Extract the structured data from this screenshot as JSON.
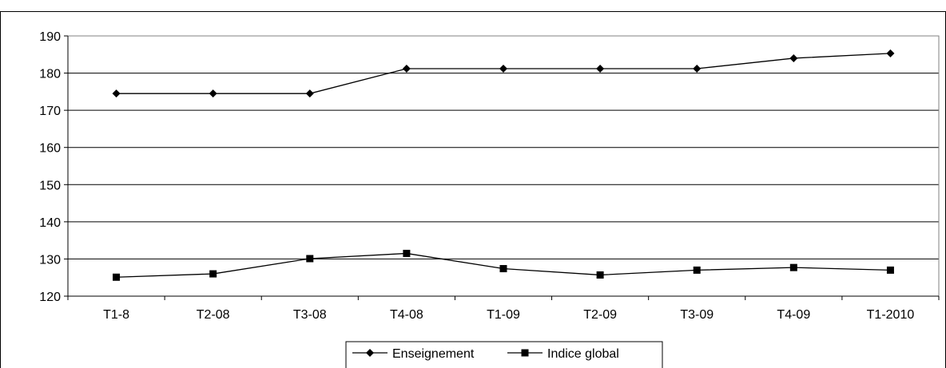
{
  "chart_data": {
    "type": "line",
    "title": "",
    "xlabel": "",
    "ylabel": "",
    "categories": [
      "T1-8",
      "T2-08",
      "T3-08",
      "T4-08",
      "T1-09",
      "T2-09",
      "T3-09",
      "T4-09",
      "T1-2010"
    ],
    "ylim": [
      120,
      190
    ],
    "yticks": [
      120,
      130,
      140,
      150,
      160,
      170,
      180,
      190
    ],
    "grid": true,
    "legend_position": "bottom",
    "series": [
      {
        "name": "Enseignement",
        "marker": "diamond",
        "values": [
          174.5,
          174.5,
          174.5,
          181.2,
          181.2,
          181.2,
          181.2,
          184.0,
          185.3
        ]
      },
      {
        "name": "Indice global",
        "marker": "square",
        "values": [
          125.1,
          126.0,
          130.1,
          131.5,
          127.4,
          125.7,
          127.0,
          127.7,
          127.0
        ]
      }
    ]
  }
}
